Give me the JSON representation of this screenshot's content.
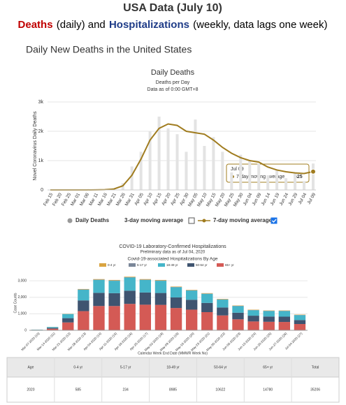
{
  "header": {
    "title": "USA Data (July 10)",
    "subtitle_parts": [
      "Deaths",
      "(daily) and",
      "Hospitalizations",
      "(weekly, data lags one week)"
    ]
  },
  "section_title": "Daily New Deaths in the United States",
  "chart_data": [
    {
      "type": "combo",
      "title": "Daily Deaths",
      "subtitle": "Deaths per Day",
      "note": "Data as of 0:00 GMT+8",
      "y_label": "Novel Coronavirus Daily Deaths",
      "x": [
        "Feb 15",
        "Feb 20",
        "Feb 25",
        "Mar 01",
        "Mar 06",
        "Mar 11",
        "Mar 16",
        "Mar 21",
        "Mar 26",
        "Mar 31",
        "Apr 05",
        "Apr 10",
        "Apr 15",
        "Apr 20",
        "Apr 25",
        "Apr 30",
        "May 05",
        "May 10",
        "May 15",
        "May 20",
        "May 25",
        "May 30",
        "Jun 04",
        "Jun 09",
        "Jun 14",
        "Jun 19",
        "Jun 24",
        "Jun 29",
        "Jul 04",
        "Jul 09"
      ],
      "series": [
        {
          "name": "Daily Deaths",
          "type": "bar",
          "color": "#e3e3e3",
          "values": [
            0,
            0,
            0,
            0,
            2,
            8,
            20,
            60,
            230,
            800,
            1300,
            2000,
            2500,
            2100,
            1900,
            1300,
            2400,
            1500,
            1800,
            1300,
            600,
            1200,
            1000,
            900,
            500,
            700,
            400,
            600,
            300,
            900
          ]
        },
        {
          "name": "3-day moving average",
          "type": "line",
          "color": "#cccccc",
          "visible": false
        },
        {
          "name": "7-day moving average",
          "type": "line",
          "color": "#a07c1f",
          "visible": true,
          "values": [
            0,
            0,
            0,
            0,
            1,
            3,
            8,
            30,
            140,
            500,
            1050,
            1700,
            2100,
            2250,
            2200,
            2000,
            1950,
            1900,
            1700,
            1450,
            1250,
            1100,
            1000,
            950,
            780,
            680,
            620,
            580,
            560,
            625
          ]
        }
      ],
      "ylim": [
        0,
        3000
      ],
      "yticks": [
        0,
        {
          "value": 1000,
          "label": "1k"
        },
        {
          "value": 2000,
          "label": "2k"
        },
        {
          "value": 3000,
          "label": "3k"
        }
      ],
      "grid": true
    },
    {
      "type": "stacked_bar",
      "title": "COVID-19 Laboratory-Confirmed Hospitalizations",
      "subtitle": "Preliminary data as of Jul 04, 2020",
      "legend_title": "Covid-19-associated Hospitalizations By Age",
      "y_label": "Case Counts",
      "x_label": "Calendar Week End Date (MMWR Week No)",
      "categories": [
        "Mar-07-2020 (10)",
        "Mar-14-2020 (11)",
        "Mar-21-2020 (12)",
        "Mar-28-2020 (13)",
        "Apr-04-2020 (14)",
        "Apr-11-2020 (15)",
        "Apr-18-2020 (16)",
        "Apr-25-2020 (17)",
        "May-02-2020 (18)",
        "May-09-2020 (19)",
        "May-16-2020 (20)",
        "May-23-2020 (21)",
        "May-30-2020 (22)",
        "Jun-06-2020 (23)",
        "Jun-13-2020 (24)",
        "Jun-20-2020 (25)",
        "Jun-27-2020 (26)",
        "Jul-04-2020 (27)"
      ],
      "series": [
        {
          "name": "0-4 yr",
          "color": "#d9a441",
          "values": [
            1,
            3,
            10,
            25,
            30,
            30,
            30,
            30,
            30,
            25,
            25,
            25,
            25,
            20,
            20,
            20,
            20,
            20
          ]
        },
        {
          "name": "5-17 yr",
          "color": "#7b8799",
          "values": [
            0,
            1,
            5,
            15,
            20,
            20,
            20,
            20,
            20,
            15,
            15,
            15,
            15,
            15,
            15,
            15,
            15,
            10
          ]
        },
        {
          "name": "18-49 yr",
          "color": "#45b5c9",
          "values": [
            10,
            50,
            250,
            650,
            780,
            750,
            800,
            760,
            740,
            620,
            560,
            550,
            480,
            400,
            330,
            330,
            340,
            300
          ]
        },
        {
          "name": "50-64 yr",
          "color": "#3f5470",
          "values": [
            9,
            50,
            260,
            650,
            800,
            780,
            800,
            740,
            720,
            640,
            600,
            560,
            480,
            400,
            350,
            320,
            320,
            240
          ]
        },
        {
          "name": "65+ yr",
          "color": "#d45a55",
          "values": [
            20,
            96,
            475,
            1160,
            1470,
            1470,
            1600,
            1550,
            1540,
            1350,
            1250,
            1100,
            900,
            665,
            535,
            515,
            505,
            380
          ]
        }
      ],
      "ylim": [
        0,
        3300
      ],
      "yticks": [
        0,
        {
          "value": 1000,
          "label": "1,000"
        },
        {
          "value": 2000,
          "label": "2,000"
        },
        {
          "value": 3000,
          "label": "3,000"
        }
      ],
      "grid": true
    }
  ],
  "table": {
    "header": [
      "Age",
      "0-4 yr",
      "5-17 yr",
      "18-49 yr",
      "50-64 yr",
      "65+ yr",
      "Total"
    ],
    "rows": [
      [
        "2020",
        585,
        234,
        8985,
        10622,
        14780,
        35206
      ]
    ]
  }
}
